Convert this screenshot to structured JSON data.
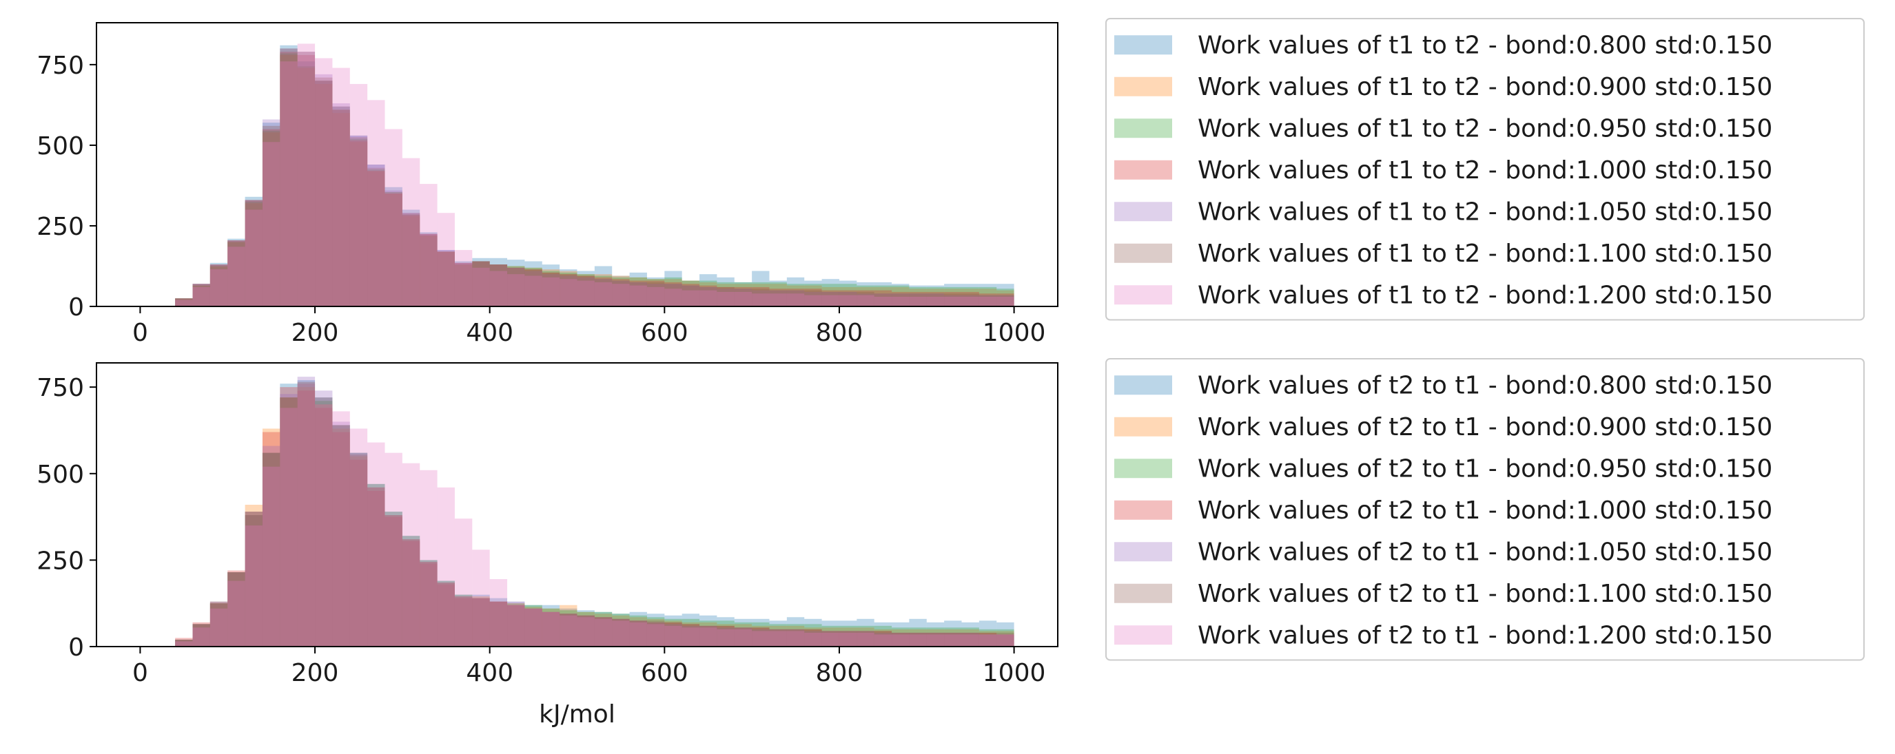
{
  "chart_data": [
    {
      "type": "histogram",
      "xlabel": "",
      "ylabel": "",
      "xlim": [
        -50,
        1050
      ],
      "ylim": [
        0,
        880
      ],
      "x_ticks": [
        "0",
        "200",
        "400",
        "600",
        "800",
        "1000"
      ],
      "y_ticks": [
        "0",
        "250",
        "500",
        "750"
      ],
      "bin_start": 0,
      "bin_width": 20,
      "alpha": 0.3,
      "legend_position": "outside-right",
      "series": [
        {
          "name": "Work values of t1 to t2 - bond:0.800 std:0.150",
          "color": "#1f77b4",
          "values": [
            0,
            0,
            25,
            70,
            135,
            210,
            340,
            570,
            810,
            760,
            700,
            620,
            530,
            440,
            370,
            300,
            230,
            175,
            140,
            150,
            150,
            145,
            140,
            130,
            115,
            110,
            125,
            95,
            105,
            90,
            110,
            80,
            100,
            90,
            75,
            110,
            80,
            90,
            80,
            85,
            80,
            75,
            75,
            70,
            65,
            65,
            70,
            70,
            70,
            70
          ]
        },
        {
          "name": "Work values of t1 to t2 - bond:0.900 std:0.150",
          "color": "#ff7f0e",
          "values": [
            0,
            0,
            25,
            65,
            125,
            200,
            320,
            540,
            780,
            740,
            690,
            600,
            510,
            420,
            350,
            280,
            220,
            170,
            130,
            140,
            130,
            125,
            120,
            115,
            110,
            100,
            100,
            95,
            90,
            85,
            85,
            80,
            75,
            70,
            70,
            70,
            70,
            65,
            65,
            60,
            60,
            60,
            60,
            60,
            55,
            55,
            55,
            55,
            55,
            50
          ]
        },
        {
          "name": "Work values of t1 to t2 - bond:0.950 std:0.150",
          "color": "#2ca02c",
          "values": [
            0,
            0,
            25,
            65,
            125,
            200,
            325,
            545,
            785,
            745,
            700,
            610,
            520,
            425,
            355,
            285,
            220,
            170,
            130,
            140,
            130,
            125,
            120,
            110,
            105,
            100,
            95,
            90,
            90,
            85,
            90,
            80,
            80,
            75,
            75,
            75,
            75,
            70,
            70,
            70,
            70,
            65,
            65,
            65,
            60,
            60,
            60,
            60,
            60,
            55
          ]
        },
        {
          "name": "Work values of t1 to t2 - bond:1.000 std:0.150",
          "color": "#d62728",
          "values": [
            0,
            0,
            25,
            70,
            130,
            205,
            330,
            550,
            790,
            780,
            700,
            610,
            515,
            420,
            350,
            285,
            225,
            170,
            135,
            140,
            130,
            120,
            115,
            105,
            100,
            95,
            90,
            85,
            80,
            80,
            75,
            70,
            65,
            60,
            60,
            60,
            55,
            55,
            55,
            50,
            50,
            50,
            50,
            45,
            45,
            45,
            45,
            45,
            40,
            40
          ]
        },
        {
          "name": "Work values of t1 to t2 - bond:1.050 std:0.150",
          "color": "#9467bd",
          "values": [
            0,
            0,
            25,
            70,
            130,
            205,
            330,
            580,
            800,
            790,
            720,
            630,
            530,
            440,
            360,
            290,
            225,
            175,
            135,
            140,
            130,
            120,
            110,
            100,
            95,
            90,
            85,
            80,
            75,
            70,
            70,
            65,
            60,
            55,
            55,
            50,
            50,
            50,
            45,
            45,
            45,
            40,
            40,
            40,
            40,
            40,
            35,
            35,
            35,
            35
          ]
        },
        {
          "name": "Work values of t1 to t2 - bond:1.100 std:0.150",
          "color": "#8c564b",
          "values": [
            0,
            0,
            25,
            70,
            130,
            205,
            330,
            560,
            800,
            790,
            710,
            620,
            525,
            430,
            355,
            290,
            225,
            170,
            135,
            140,
            130,
            120,
            115,
            105,
            100,
            95,
            85,
            80,
            75,
            75,
            70,
            65,
            60,
            60,
            55,
            55,
            50,
            50,
            50,
            45,
            45,
            45,
            40,
            40,
            40,
            40,
            40,
            40,
            35,
            35
          ]
        },
        {
          "name": "Work values of t1 to t2 - bond:1.200 std:0.150",
          "color": "#e377c2",
          "values": [
            0,
            0,
            20,
            60,
            115,
            185,
            300,
            510,
            760,
            815,
            770,
            740,
            690,
            640,
            550,
            460,
            380,
            290,
            175,
            120,
            110,
            100,
            95,
            90,
            85,
            80,
            75,
            70,
            65,
            60,
            55,
            50,
            50,
            45,
            45,
            40,
            40,
            40,
            35,
            35,
            35,
            35,
            30,
            30,
            30,
            30,
            30,
            30,
            30,
            30
          ]
        }
      ]
    },
    {
      "type": "histogram",
      "xlabel": "kJ/mol",
      "ylabel": "",
      "xlim": [
        -50,
        1050
      ],
      "ylim": [
        0,
        820
      ],
      "x_ticks": [
        "0",
        "200",
        "400",
        "600",
        "800",
        "1000"
      ],
      "y_ticks": [
        "0",
        "250",
        "500",
        "750"
      ],
      "bin_start": 0,
      "bin_width": 20,
      "alpha": 0.3,
      "legend_position": "outside-right",
      "series": [
        {
          "name": "Work values of t2 to t1 - bond:0.800 std:0.150",
          "color": "#1f77b4",
          "values": [
            0,
            0,
            20,
            65,
            130,
            215,
            380,
            560,
            760,
            770,
            720,
            640,
            560,
            470,
            390,
            320,
            250,
            190,
            150,
            150,
            140,
            130,
            120,
            120,
            110,
            105,
            100,
            95,
            100,
            95,
            90,
            95,
            90,
            85,
            80,
            80,
            75,
            85,
            80,
            75,
            75,
            80,
            70,
            70,
            80,
            70,
            75,
            70,
            75,
            70
          ]
        },
        {
          "name": "Work values of t2 to t1 - bond:0.900 std:0.150",
          "color": "#ff7f0e",
          "values": [
            0,
            0,
            20,
            65,
            125,
            215,
            410,
            630,
            720,
            750,
            700,
            630,
            550,
            460,
            380,
            310,
            245,
            185,
            145,
            145,
            130,
            125,
            115,
            110,
            120,
            100,
            95,
            90,
            85,
            80,
            75,
            70,
            70,
            65,
            65,
            60,
            60,
            60,
            55,
            55,
            55,
            55,
            50,
            50,
            50,
            50,
            50,
            50,
            45,
            45
          ]
        },
        {
          "name": "Work values of t2 to t1 - bond:0.950 std:0.150",
          "color": "#2ca02c",
          "values": [
            0,
            0,
            20,
            65,
            125,
            215,
            390,
            560,
            720,
            760,
            710,
            640,
            560,
            470,
            390,
            320,
            250,
            190,
            150,
            140,
            130,
            125,
            120,
            110,
            105,
            100,
            100,
            95,
            90,
            85,
            80,
            80,
            75,
            75,
            70,
            70,
            65,
            65,
            65,
            60,
            60,
            60,
            60,
            55,
            55,
            55,
            55,
            55,
            50,
            50
          ]
        },
        {
          "name": "Work values of t2 to t1 - bond:1.000 std:0.150",
          "color": "#d62728",
          "values": [
            0,
            0,
            25,
            70,
            130,
            220,
            390,
            620,
            750,
            740,
            690,
            620,
            540,
            450,
            375,
            305,
            240,
            180,
            140,
            140,
            130,
            120,
            110,
            100,
            95,
            90,
            85,
            80,
            75,
            70,
            70,
            65,
            60,
            60,
            55,
            55,
            50,
            50,
            50,
            45,
            45,
            45,
            45,
            40,
            40,
            40,
            40,
            40,
            40,
            35
          ]
        },
        {
          "name": "Work values of t2 to t1 - bond:1.050 std:0.150",
          "color": "#9467bd",
          "values": [
            0,
            0,
            20,
            65,
            125,
            215,
            390,
            580,
            730,
            780,
            740,
            650,
            560,
            460,
            380,
            310,
            245,
            185,
            145,
            140,
            130,
            120,
            110,
            100,
            95,
            90,
            85,
            80,
            75,
            70,
            65,
            60,
            60,
            55,
            55,
            50,
            50,
            50,
            45,
            45,
            45,
            45,
            40,
            40,
            40,
            40,
            40,
            40,
            35,
            35
          ]
        },
        {
          "name": "Work values of t2 to t1 - bond:1.100 std:0.150",
          "color": "#8c564b",
          "values": [
            0,
            0,
            20,
            65,
            125,
            215,
            380,
            560,
            720,
            765,
            720,
            640,
            555,
            460,
            380,
            310,
            245,
            185,
            145,
            140,
            130,
            120,
            110,
            100,
            95,
            90,
            85,
            80,
            75,
            75,
            70,
            65,
            60,
            60,
            55,
            55,
            50,
            50,
            50,
            45,
            45,
            45,
            45,
            40,
            40,
            40,
            40,
            40,
            40,
            40
          ]
        },
        {
          "name": "Work values of t2 to t1 - bond:1.200 std:0.150",
          "color": "#e377c2",
          "values": [
            0,
            0,
            15,
            55,
            110,
            190,
            350,
            520,
            690,
            760,
            700,
            680,
            630,
            590,
            560,
            530,
            510,
            460,
            370,
            280,
            195,
            130,
            110,
            100,
            90,
            85,
            80,
            75,
            70,
            65,
            60,
            55,
            55,
            50,
            50,
            45,
            45,
            45,
            40,
            40,
            40,
            40,
            35,
            35,
            35,
            35,
            35,
            35,
            35,
            35
          ]
        }
      ]
    }
  ]
}
